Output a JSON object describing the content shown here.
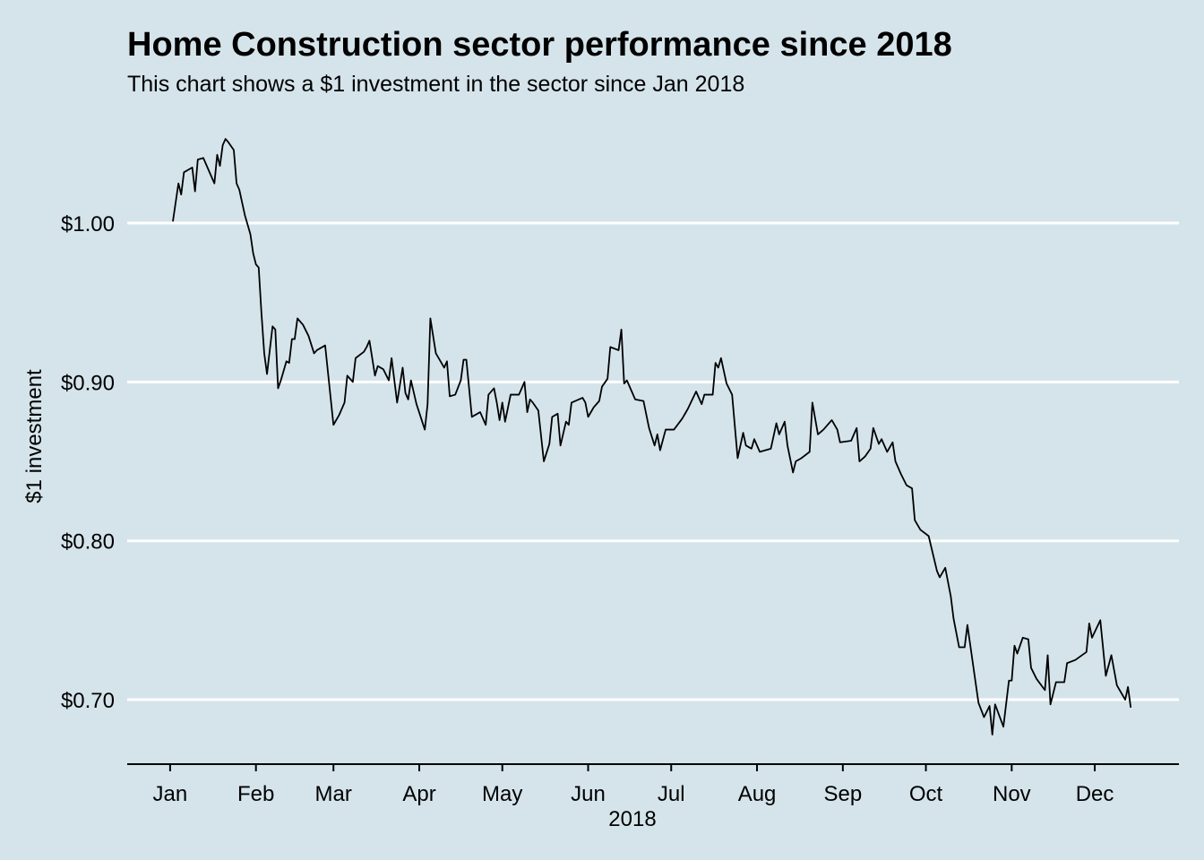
{
  "chart_data": {
    "type": "line",
    "title": "Home Construction sector performance since 2018",
    "subtitle": "This chart shows a $1 investment in the sector since Jan 2018",
    "xlabel": "2018",
    "ylabel": "$1 investment",
    "color": "#000000",
    "grid": true,
    "xlim": [
      -14.5,
      365.4
    ],
    "ylim": [
      0.6594,
      1.0615
    ],
    "xticks": [
      {
        "value": 1,
        "label": "Jan"
      },
      {
        "value": 32,
        "label": "Feb"
      },
      {
        "value": 60,
        "label": "Mar"
      },
      {
        "value": 91,
        "label": "Apr"
      },
      {
        "value": 121,
        "label": "May"
      },
      {
        "value": 152,
        "label": "Jun"
      },
      {
        "value": 182,
        "label": "Jul"
      },
      {
        "value": 213,
        "label": "Aug"
      },
      {
        "value": 244,
        "label": "Sep"
      },
      {
        "value": 274,
        "label": "Oct"
      },
      {
        "value": 305,
        "label": "Nov"
      },
      {
        "value": 335,
        "label": "Dec"
      }
    ],
    "yticks": [
      {
        "value": 0.7,
        "label": "$0.70"
      },
      {
        "value": 0.8,
        "label": "$0.80"
      },
      {
        "value": 0.9,
        "label": "$0.90"
      },
      {
        "value": 1.0,
        "label": "$1.00"
      }
    ],
    "x": [
      2,
      4,
      5,
      6,
      8,
      9,
      10,
      11,
      13,
      17,
      18,
      19,
      20,
      21,
      22,
      24,
      25,
      26,
      28,
      30,
      31,
      32,
      33,
      34,
      35,
      36,
      38,
      39,
      40,
      41,
      43,
      44,
      45,
      46,
      47,
      49,
      51,
      53,
      54,
      57,
      60,
      62,
      64,
      65,
      67,
      68,
      71,
      72,
      73,
      74,
      75,
      76,
      78,
      80,
      81,
      83,
      84,
      85,
      86,
      87,
      88,
      90,
      93,
      94,
      95,
      97,
      99,
      100,
      101,
      102,
      104,
      106,
      107,
      108,
      110,
      112,
      113,
      115,
      116,
      118,
      119,
      120,
      121,
      122,
      124,
      127,
      129,
      130,
      131,
      132,
      134,
      136,
      138,
      139,
      141,
      142,
      144,
      145,
      146,
      150,
      151,
      152,
      154,
      156,
      157,
      159,
      160,
      163,
      164,
      165,
      166,
      169,
      172,
      174,
      176,
      177,
      178,
      180,
      183,
      186,
      188,
      191,
      193,
      194,
      197,
      198,
      199,
      200,
      202,
      204,
      206,
      208,
      209,
      211,
      212,
      214,
      216,
      218,
      220,
      221,
      223,
      224,
      226,
      227,
      229,
      232,
      233,
      235,
      237,
      240,
      242,
      243,
      247,
      249,
      250,
      252,
      254,
      255,
      257,
      258,
      260,
      262,
      263,
      265,
      267,
      269,
      270,
      272,
      275,
      278,
      279,
      281,
      283,
      284,
      286,
      288,
      289,
      293,
      295,
      297,
      298,
      299,
      302,
      304,
      305,
      306,
      307,
      309,
      311,
      312,
      314,
      317,
      318,
      319,
      321,
      324,
      325,
      328,
      332,
      333,
      334,
      337,
      339,
      341,
      343,
      346,
      347,
      348
    ],
    "values": [
      1.001,
      1.025,
      1.018,
      1.032,
      1.034,
      1.035,
      1.02,
      1.04,
      1.041,
      1.025,
      1.043,
      1.036,
      1.049,
      1.053,
      1.051,
      1.046,
      1.025,
      1.021,
      1.005,
      0.993,
      0.981,
      0.974,
      0.972,
      0.943,
      0.918,
      0.905,
      0.935,
      0.933,
      0.896,
      0.901,
      0.913,
      0.912,
      0.927,
      0.927,
      0.94,
      0.936,
      0.929,
      0.918,
      0.92,
      0.923,
      0.873,
      0.879,
      0.887,
      0.904,
      0.9,
      0.915,
      0.919,
      0.922,
      0.926,
      0.915,
      0.904,
      0.91,
      0.908,
      0.901,
      0.915,
      0.887,
      0.898,
      0.909,
      0.893,
      0.889,
      0.901,
      0.886,
      0.87,
      0.886,
      0.94,
      0.918,
      0.912,
      0.909,
      0.913,
      0.891,
      0.892,
      0.901,
      0.914,
      0.914,
      0.878,
      0.88,
      0.881,
      0.873,
      0.892,
      0.896,
      0.887,
      0.876,
      0.887,
      0.875,
      0.892,
      0.892,
      0.9,
      0.881,
      0.889,
      0.887,
      0.882,
      0.85,
      0.861,
      0.878,
      0.88,
      0.86,
      0.875,
      0.873,
      0.887,
      0.89,
      0.887,
      0.878,
      0.884,
      0.888,
      0.897,
      0.902,
      0.922,
      0.92,
      0.933,
      0.899,
      0.901,
      0.889,
      0.888,
      0.871,
      0.86,
      0.867,
      0.857,
      0.87,
      0.87,
      0.877,
      0.883,
      0.894,
      0.886,
      0.892,
      0.892,
      0.912,
      0.909,
      0.915,
      0.899,
      0.892,
      0.852,
      0.868,
      0.86,
      0.858,
      0.864,
      0.856,
      0.857,
      0.858,
      0.874,
      0.867,
      0.875,
      0.86,
      0.843,
      0.85,
      0.852,
      0.856,
      0.887,
      0.867,
      0.87,
      0.876,
      0.87,
      0.862,
      0.863,
      0.871,
      0.85,
      0.853,
      0.858,
      0.871,
      0.861,
      0.864,
      0.856,
      0.862,
      0.85,
      0.842,
      0.835,
      0.833,
      0.813,
      0.807,
      0.803,
      0.781,
      0.777,
      0.783,
      0.765,
      0.751,
      0.733,
      0.733,
      0.747,
      0.698,
      0.689,
      0.696,
      0.678,
      0.697,
      0.683,
      0.712,
      0.712,
      0.734,
      0.729,
      0.739,
      0.738,
      0.72,
      0.713,
      0.706,
      0.728,
      0.697,
      0.711,
      0.711,
      0.723,
      0.725,
      0.73,
      0.748,
      0.739,
      0.75,
      0.715,
      0.728,
      0.709,
      0.7,
      0.708,
      0.695
    ]
  }
}
